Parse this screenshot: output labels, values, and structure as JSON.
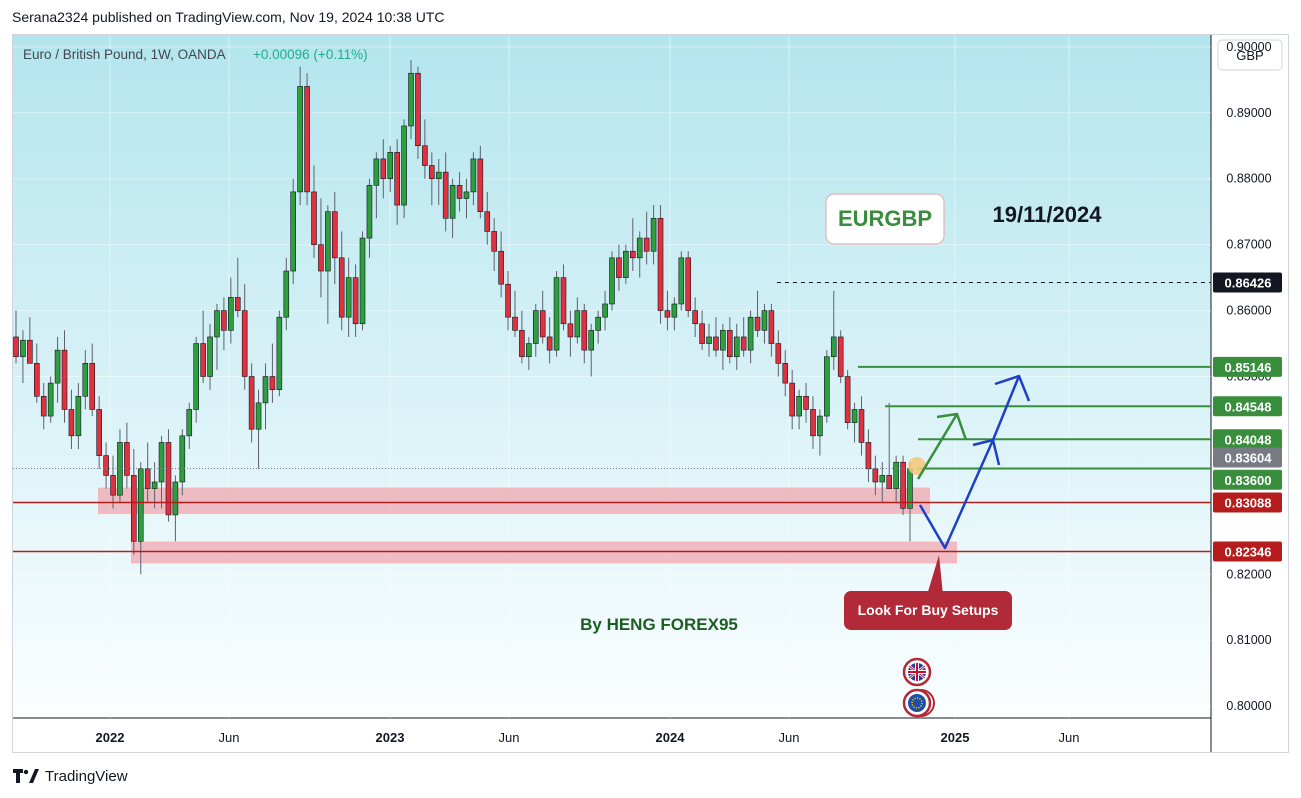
{
  "publish_line": "Serana2324 published on TradingView.com, Nov 19, 2024 10:38 UTC",
  "footer": {
    "brand": "TradingView"
  },
  "chart_data": {
    "type": "candlestick",
    "symbol_line": "Euro / British Pound, 1W, OANDA",
    "change_text": "+0.00096 (+0.11%)",
    "currency_button": "GBP",
    "title_box": "EURGBP",
    "date_text": "19/11/2024",
    "author_text": "By HENG FOREX95",
    "callout_text": "Look For Buy Setups",
    "y_axis": {
      "ticks": [
        "0.80000",
        "0.81000",
        "0.82000",
        "0.85000",
        "0.86000",
        "0.87000",
        "0.88000",
        "0.89000",
        "0.90000"
      ],
      "ylim": [
        0.7982,
        0.9018
      ]
    },
    "x_axis": {
      "ticks": [
        "2022",
        "Jun",
        "2023",
        "Jun",
        "2024",
        "Jun",
        "2025",
        "Jun"
      ]
    },
    "price_labels": [
      {
        "value": 0.86426,
        "text": "0.86426",
        "color": "#131722"
      },
      {
        "value": 0.85146,
        "text": "0.85146",
        "color": "#388e3c"
      },
      {
        "value": 0.84548,
        "text": "0.84548",
        "color": "#388e3c"
      },
      {
        "value": 0.84048,
        "text": "0.84048",
        "color": "#388e3c"
      },
      {
        "value": 0.83604,
        "text": "0.83604",
        "color": "#787b86"
      },
      {
        "value": 0.836,
        "text": "0.83600",
        "color": "#388e3c"
      },
      {
        "value": 0.83088,
        "text": "0.83088",
        "color": "#b71c1c"
      },
      {
        "value": 0.82346,
        "text": "0.82346",
        "color": "#b71c1c"
      }
    ],
    "levels": {
      "resistance_dashed": 0.86426,
      "targets": [
        0.85146,
        0.84548,
        0.84048
      ],
      "current_price": 0.83604,
      "support_lines": [
        0.83088,
        0.82346
      ],
      "support_zones": [
        [
          0.8293,
          0.833
        ],
        [
          0.8218,
          0.8248
        ]
      ]
    },
    "candles": [
      {
        "o": 0.856,
        "h": 0.86,
        "l": 0.852,
        "c": 0.853
      },
      {
        "o": 0.853,
        "h": 0.857,
        "l": 0.849,
        "c": 0.8555
      },
      {
        "o": 0.8555,
        "h": 0.859,
        "l": 0.853,
        "c": 0.852
      },
      {
        "o": 0.852,
        "h": 0.855,
        "l": 0.846,
        "c": 0.847
      },
      {
        "o": 0.847,
        "h": 0.849,
        "l": 0.842,
        "c": 0.844
      },
      {
        "o": 0.844,
        "h": 0.85,
        "l": 0.843,
        "c": 0.849
      },
      {
        "o": 0.849,
        "h": 0.856,
        "l": 0.846,
        "c": 0.854
      },
      {
        "o": 0.854,
        "h": 0.857,
        "l": 0.843,
        "c": 0.845
      },
      {
        "o": 0.845,
        "h": 0.848,
        "l": 0.839,
        "c": 0.841
      },
      {
        "o": 0.841,
        "h": 0.849,
        "l": 0.839,
        "c": 0.847
      },
      {
        "o": 0.847,
        "h": 0.854,
        "l": 0.845,
        "c": 0.852
      },
      {
        "o": 0.852,
        "h": 0.855,
        "l": 0.844,
        "c": 0.845
      },
      {
        "o": 0.845,
        "h": 0.847,
        "l": 0.836,
        "c": 0.838
      },
      {
        "o": 0.838,
        "h": 0.84,
        "l": 0.833,
        "c": 0.835
      },
      {
        "o": 0.835,
        "h": 0.838,
        "l": 0.83,
        "c": 0.832
      },
      {
        "o": 0.832,
        "h": 0.842,
        "l": 0.831,
        "c": 0.84
      },
      {
        "o": 0.84,
        "h": 0.843,
        "l": 0.833,
        "c": 0.835
      },
      {
        "o": 0.835,
        "h": 0.839,
        "l": 0.823,
        "c": 0.825
      },
      {
        "o": 0.825,
        "h": 0.837,
        "l": 0.82,
        "c": 0.836
      },
      {
        "o": 0.836,
        "h": 0.84,
        "l": 0.831,
        "c": 0.833
      },
      {
        "o": 0.833,
        "h": 0.837,
        "l": 0.83,
        "c": 0.834
      },
      {
        "o": 0.834,
        "h": 0.841,
        "l": 0.83,
        "c": 0.84
      },
      {
        "o": 0.84,
        "h": 0.842,
        "l": 0.828,
        "c": 0.829
      },
      {
        "o": 0.829,
        "h": 0.835,
        "l": 0.825,
        "c": 0.834
      },
      {
        "o": 0.834,
        "h": 0.842,
        "l": 0.832,
        "c": 0.841
      },
      {
        "o": 0.841,
        "h": 0.846,
        "l": 0.839,
        "c": 0.845
      },
      {
        "o": 0.845,
        "h": 0.856,
        "l": 0.843,
        "c": 0.855
      },
      {
        "o": 0.855,
        "h": 0.86,
        "l": 0.849,
        "c": 0.85
      },
      {
        "o": 0.85,
        "h": 0.858,
        "l": 0.848,
        "c": 0.856
      },
      {
        "o": 0.856,
        "h": 0.861,
        "l": 0.851,
        "c": 0.86
      },
      {
        "o": 0.86,
        "h": 0.862,
        "l": 0.854,
        "c": 0.857
      },
      {
        "o": 0.857,
        "h": 0.865,
        "l": 0.855,
        "c": 0.862
      },
      {
        "o": 0.862,
        "h": 0.868,
        "l": 0.859,
        "c": 0.86
      },
      {
        "o": 0.86,
        "h": 0.864,
        "l": 0.848,
        "c": 0.85
      },
      {
        "o": 0.85,
        "h": 0.852,
        "l": 0.84,
        "c": 0.842
      },
      {
        "o": 0.842,
        "h": 0.848,
        "l": 0.836,
        "c": 0.846
      },
      {
        "o": 0.846,
        "h": 0.852,
        "l": 0.842,
        "c": 0.85
      },
      {
        "o": 0.85,
        "h": 0.855,
        "l": 0.846,
        "c": 0.848
      },
      {
        "o": 0.848,
        "h": 0.86,
        "l": 0.847,
        "c": 0.859
      },
      {
        "o": 0.859,
        "h": 0.868,
        "l": 0.857,
        "c": 0.866
      },
      {
        "o": 0.866,
        "h": 0.88,
        "l": 0.864,
        "c": 0.878
      },
      {
        "o": 0.878,
        "h": 0.897,
        "l": 0.876,
        "c": 0.894
      },
      {
        "o": 0.894,
        "h": 0.896,
        "l": 0.876,
        "c": 0.878
      },
      {
        "o": 0.878,
        "h": 0.882,
        "l": 0.868,
        "c": 0.87
      },
      {
        "o": 0.87,
        "h": 0.877,
        "l": 0.862,
        "c": 0.866
      },
      {
        "o": 0.866,
        "h": 0.876,
        "l": 0.858,
        "c": 0.875
      },
      {
        "o": 0.875,
        "h": 0.878,
        "l": 0.864,
        "c": 0.868
      },
      {
        "o": 0.868,
        "h": 0.872,
        "l": 0.857,
        "c": 0.859
      },
      {
        "o": 0.859,
        "h": 0.868,
        "l": 0.856,
        "c": 0.865
      },
      {
        "o": 0.865,
        "h": 0.867,
        "l": 0.856,
        "c": 0.858
      },
      {
        "o": 0.858,
        "h": 0.872,
        "l": 0.857,
        "c": 0.871
      },
      {
        "o": 0.871,
        "h": 0.88,
        "l": 0.868,
        "c": 0.879
      },
      {
        "o": 0.879,
        "h": 0.884,
        "l": 0.874,
        "c": 0.883
      },
      {
        "o": 0.883,
        "h": 0.886,
        "l": 0.877,
        "c": 0.88
      },
      {
        "o": 0.88,
        "h": 0.885,
        "l": 0.878,
        "c": 0.884
      },
      {
        "o": 0.884,
        "h": 0.886,
        "l": 0.873,
        "c": 0.876
      },
      {
        "o": 0.876,
        "h": 0.889,
        "l": 0.874,
        "c": 0.888
      },
      {
        "o": 0.888,
        "h": 0.898,
        "l": 0.886,
        "c": 0.896
      },
      {
        "o": 0.896,
        "h": 0.897,
        "l": 0.883,
        "c": 0.885
      },
      {
        "o": 0.885,
        "h": 0.889,
        "l": 0.88,
        "c": 0.882
      },
      {
        "o": 0.882,
        "h": 0.884,
        "l": 0.876,
        "c": 0.88
      },
      {
        "o": 0.88,
        "h": 0.883,
        "l": 0.876,
        "c": 0.881
      },
      {
        "o": 0.881,
        "h": 0.884,
        "l": 0.872,
        "c": 0.874
      },
      {
        "o": 0.874,
        "h": 0.88,
        "l": 0.871,
        "c": 0.879
      },
      {
        "o": 0.879,
        "h": 0.881,
        "l": 0.875,
        "c": 0.877
      },
      {
        "o": 0.877,
        "h": 0.88,
        "l": 0.874,
        "c": 0.878
      },
      {
        "o": 0.878,
        "h": 0.884,
        "l": 0.876,
        "c": 0.883
      },
      {
        "o": 0.883,
        "h": 0.885,
        "l": 0.874,
        "c": 0.875
      },
      {
        "o": 0.875,
        "h": 0.878,
        "l": 0.87,
        "c": 0.872
      },
      {
        "o": 0.872,
        "h": 0.874,
        "l": 0.866,
        "c": 0.869
      },
      {
        "o": 0.869,
        "h": 0.872,
        "l": 0.862,
        "c": 0.864
      },
      {
        "o": 0.864,
        "h": 0.866,
        "l": 0.857,
        "c": 0.859
      },
      {
        "o": 0.859,
        "h": 0.863,
        "l": 0.856,
        "c": 0.857
      },
      {
        "o": 0.857,
        "h": 0.86,
        "l": 0.852,
        "c": 0.853
      },
      {
        "o": 0.853,
        "h": 0.856,
        "l": 0.851,
        "c": 0.855
      },
      {
        "o": 0.855,
        "h": 0.861,
        "l": 0.853,
        "c": 0.86
      },
      {
        "o": 0.86,
        "h": 0.863,
        "l": 0.855,
        "c": 0.856
      },
      {
        "o": 0.856,
        "h": 0.859,
        "l": 0.852,
        "c": 0.854
      },
      {
        "o": 0.854,
        "h": 0.866,
        "l": 0.853,
        "c": 0.865
      },
      {
        "o": 0.865,
        "h": 0.867,
        "l": 0.857,
        "c": 0.858
      },
      {
        "o": 0.858,
        "h": 0.86,
        "l": 0.853,
        "c": 0.856
      },
      {
        "o": 0.856,
        "h": 0.862,
        "l": 0.855,
        "c": 0.86
      },
      {
        "o": 0.86,
        "h": 0.861,
        "l": 0.852,
        "c": 0.854
      },
      {
        "o": 0.854,
        "h": 0.858,
        "l": 0.85,
        "c": 0.857
      },
      {
        "o": 0.857,
        "h": 0.86,
        "l": 0.855,
        "c": 0.859
      },
      {
        "o": 0.859,
        "h": 0.863,
        "l": 0.857,
        "c": 0.861
      },
      {
        "o": 0.861,
        "h": 0.869,
        "l": 0.86,
        "c": 0.868
      },
      {
        "o": 0.868,
        "h": 0.87,
        "l": 0.863,
        "c": 0.865
      },
      {
        "o": 0.865,
        "h": 0.87,
        "l": 0.864,
        "c": 0.869
      },
      {
        "o": 0.869,
        "h": 0.874,
        "l": 0.866,
        "c": 0.868
      },
      {
        "o": 0.868,
        "h": 0.872,
        "l": 0.865,
        "c": 0.871
      },
      {
        "o": 0.871,
        "h": 0.875,
        "l": 0.867,
        "c": 0.869
      },
      {
        "o": 0.869,
        "h": 0.876,
        "l": 0.867,
        "c": 0.874
      },
      {
        "o": 0.874,
        "h": 0.876,
        "l": 0.858,
        "c": 0.86
      },
      {
        "o": 0.86,
        "h": 0.863,
        "l": 0.857,
        "c": 0.859
      },
      {
        "o": 0.859,
        "h": 0.862,
        "l": 0.857,
        "c": 0.861
      },
      {
        "o": 0.861,
        "h": 0.869,
        "l": 0.86,
        "c": 0.868
      },
      {
        "o": 0.868,
        "h": 0.869,
        "l": 0.859,
        "c": 0.86
      },
      {
        "o": 0.86,
        "h": 0.862,
        "l": 0.856,
        "c": 0.858
      },
      {
        "o": 0.858,
        "h": 0.86,
        "l": 0.854,
        "c": 0.855
      },
      {
        "o": 0.855,
        "h": 0.858,
        "l": 0.853,
        "c": 0.856
      },
      {
        "o": 0.856,
        "h": 0.859,
        "l": 0.853,
        "c": 0.854
      },
      {
        "o": 0.854,
        "h": 0.858,
        "l": 0.851,
        "c": 0.857
      },
      {
        "o": 0.857,
        "h": 0.859,
        "l": 0.852,
        "c": 0.853
      },
      {
        "o": 0.853,
        "h": 0.858,
        "l": 0.851,
        "c": 0.856
      },
      {
        "o": 0.856,
        "h": 0.859,
        "l": 0.853,
        "c": 0.854
      },
      {
        "o": 0.854,
        "h": 0.86,
        "l": 0.852,
        "c": 0.859
      },
      {
        "o": 0.859,
        "h": 0.863,
        "l": 0.856,
        "c": 0.857
      },
      {
        "o": 0.857,
        "h": 0.861,
        "l": 0.855,
        "c": 0.86
      },
      {
        "o": 0.86,
        "h": 0.861,
        "l": 0.853,
        "c": 0.855
      },
      {
        "o": 0.855,
        "h": 0.857,
        "l": 0.85,
        "c": 0.852
      },
      {
        "o": 0.852,
        "h": 0.854,
        "l": 0.847,
        "c": 0.849
      },
      {
        "o": 0.849,
        "h": 0.851,
        "l": 0.842,
        "c": 0.844
      },
      {
        "o": 0.844,
        "h": 0.848,
        "l": 0.842,
        "c": 0.847
      },
      {
        "o": 0.847,
        "h": 0.849,
        "l": 0.843,
        "c": 0.845
      },
      {
        "o": 0.845,
        "h": 0.847,
        "l": 0.839,
        "c": 0.841
      },
      {
        "o": 0.841,
        "h": 0.845,
        "l": 0.838,
        "c": 0.844
      },
      {
        "o": 0.844,
        "h": 0.854,
        "l": 0.843,
        "c": 0.853
      },
      {
        "o": 0.853,
        "h": 0.863,
        "l": 0.851,
        "c": 0.856
      },
      {
        "o": 0.856,
        "h": 0.857,
        "l": 0.849,
        "c": 0.85
      },
      {
        "o": 0.85,
        "h": 0.851,
        "l": 0.842,
        "c": 0.843
      },
      {
        "o": 0.843,
        "h": 0.846,
        "l": 0.84,
        "c": 0.845
      },
      {
        "o": 0.845,
        "h": 0.847,
        "l": 0.838,
        "c": 0.84
      },
      {
        "o": 0.84,
        "h": 0.842,
        "l": 0.834,
        "c": 0.836
      },
      {
        "o": 0.836,
        "h": 0.838,
        "l": 0.832,
        "c": 0.834
      },
      {
        "o": 0.834,
        "h": 0.837,
        "l": 0.831,
        "c": 0.835
      },
      {
        "o": 0.835,
        "h": 0.846,
        "l": 0.833,
        "c": 0.833
      },
      {
        "o": 0.833,
        "h": 0.838,
        "l": 0.831,
        "c": 0.837
      },
      {
        "o": 0.837,
        "h": 0.838,
        "l": 0.829,
        "c": 0.83
      },
      {
        "o": 0.83,
        "h": 0.837,
        "l": 0.825,
        "c": 0.836
      }
    ]
  }
}
